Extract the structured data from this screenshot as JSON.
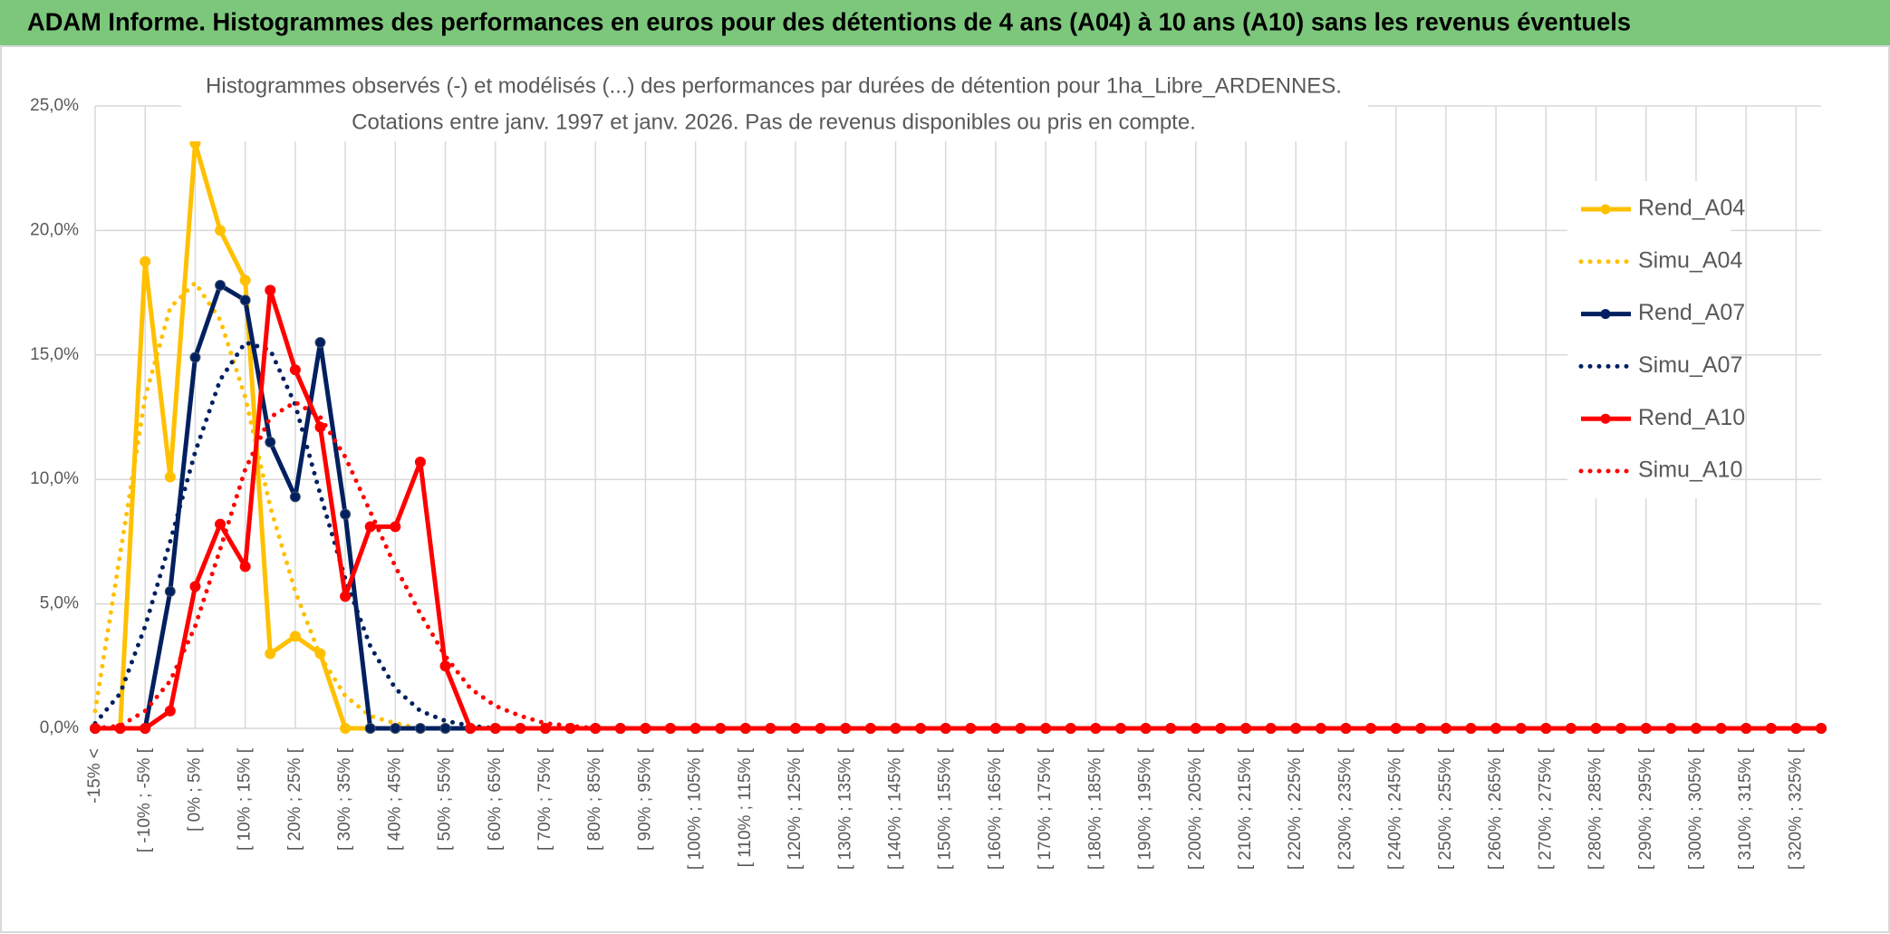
{
  "chart_data": {
    "type": "line",
    "header": "ADAM Informe. Histogrammes des performances en euros pour des détentions de 4 ans (A04) à 10 ans (A10) sans les revenus éventuels",
    "title": "Histogrammes observés (-) et modélisés (...) des performances par durées de détention pour 1ha_Libre_ARDENNES.",
    "subtitle": "Cotations entre janv. 1997 et janv. 2026. Pas de revenus disponibles ou pris en compte.",
    "categories": [
      "-15% <",
      null,
      "[ -10% ; -5% [",
      null,
      "[ 0% ; 5% [",
      null,
      "[ 10% ; 15% [",
      null,
      "[ 20% ; 25% [",
      null,
      "[ 30% ; 35% [",
      null,
      "[ 40% ; 45% [",
      null,
      "[ 50% ; 55% [",
      null,
      "[ 60% ; 65% [",
      null,
      "[ 70% ; 75% [",
      null,
      "[ 80% ; 85% [",
      null,
      "[ 90% ; 95% [",
      null,
      "[ 100% ; 105% [",
      null,
      "[ 110% ; 115% [",
      null,
      "[ 120% ; 125% [",
      null,
      "[ 130% ; 135% [",
      null,
      "[ 140% ; 145% [",
      null,
      "[ 150% ; 155% [",
      null,
      "[ 160% ; 165% [",
      null,
      "[ 170% ; 175% [",
      null,
      "[ 180% ; 185% [",
      null,
      "[ 190% ; 195% [",
      null,
      "[ 200% ; 205% [",
      null,
      "[ 210% ; 215% [",
      null,
      "[ 220% ; 225% [",
      null,
      "[ 230% ; 235% [",
      null,
      "[ 240% ; 245% [",
      null,
      "[ 250% ; 255% [",
      null,
      "[ 260% ; 265% [",
      null,
      "[ 270% ; 275% [",
      null,
      "[ 280% ; 285% [",
      null,
      "[ 290% ; 295% [",
      null,
      "[ 300% ; 305% [",
      null,
      "[ 310% ; 315% [",
      null,
      "[ 320% ; 325% [",
      null
    ],
    "series": [
      {
        "name": "Rend_A04",
        "color": "#FFC000",
        "style": "solid",
        "values": [
          0,
          0,
          18.75,
          10.1,
          23.5,
          20.0,
          18.0,
          3.0,
          3.7,
          3.0,
          0,
          0,
          0,
          0,
          0,
          0,
          0,
          0,
          0,
          0,
          0,
          0,
          0,
          0,
          0,
          0,
          0,
          0,
          0,
          0,
          0,
          0,
          0,
          0,
          0,
          0,
          0,
          0,
          0,
          0,
          0,
          0,
          0,
          0,
          0,
          0,
          0,
          0,
          0,
          0,
          0,
          0,
          0,
          0,
          0,
          0,
          0,
          0,
          0,
          0,
          0,
          0,
          0,
          0,
          0,
          0,
          0,
          0,
          0,
          0
        ]
      },
      {
        "name": "Simu_A04",
        "color": "#FFC000",
        "style": "dotted",
        "values": [
          0.7,
          7,
          13.3,
          16.9,
          17.9,
          16.4,
          13.3,
          8.9,
          5.5,
          2.9,
          1.3,
          0.5,
          0.2,
          0,
          0,
          0,
          0,
          0,
          0,
          0,
          0,
          0,
          0,
          0,
          0,
          0,
          0,
          0,
          0,
          0,
          0,
          0,
          0,
          0,
          0,
          0,
          0,
          0,
          0,
          0,
          0,
          0,
          0,
          0,
          0,
          0,
          0,
          0,
          0,
          0,
          0,
          0,
          0,
          0,
          0,
          0,
          0,
          0,
          0,
          0,
          0,
          0,
          0,
          0,
          0,
          0,
          0,
          0,
          0,
          0
        ]
      },
      {
        "name": "Rend_A07",
        "color": "#002060",
        "style": "solid",
        "values": [
          0,
          0,
          0,
          5.5,
          14.9,
          17.8,
          17.2,
          11.5,
          9.3,
          15.5,
          8.6,
          0,
          0,
          0,
          0,
          0,
          0,
          0,
          0,
          0,
          0,
          0,
          0,
          0,
          0,
          0,
          0,
          0,
          0,
          0,
          0,
          0,
          0,
          0,
          0,
          0,
          0,
          0,
          0,
          0,
          0,
          0,
          0,
          0,
          0,
          0,
          0,
          0,
          0,
          0,
          0,
          0,
          0,
          0,
          0,
          0,
          0,
          0,
          0,
          0,
          0,
          0,
          0,
          0,
          0,
          0,
          0,
          0,
          0,
          0
        ]
      },
      {
        "name": "Simu_A07",
        "color": "#002060",
        "style": "dotted",
        "values": [
          0.2,
          1.4,
          4.1,
          7.5,
          11.1,
          14.0,
          15.5,
          15.2,
          13.0,
          9.4,
          6.0,
          3.3,
          1.6,
          0.7,
          0.3,
          0.1,
          0,
          0,
          0,
          0,
          0,
          0,
          0,
          0,
          0,
          0,
          0,
          0,
          0,
          0,
          0,
          0,
          0,
          0,
          0,
          0,
          0,
          0,
          0,
          0,
          0,
          0,
          0,
          0,
          0,
          0,
          0,
          0,
          0,
          0,
          0,
          0,
          0,
          0,
          0,
          0,
          0,
          0,
          0,
          0,
          0,
          0,
          0,
          0,
          0,
          0,
          0,
          0,
          0,
          0
        ]
      },
      {
        "name": "Rend_A10",
        "color": "#FF0000",
        "style": "solid",
        "values": [
          0,
          0,
          0,
          0.7,
          5.7,
          8.2,
          6.5,
          17.6,
          14.4,
          12.1,
          5.3,
          8.1,
          8.1,
          10.7,
          2.5,
          0,
          0,
          0,
          0,
          0,
          0,
          0,
          0,
          0,
          0,
          0,
          0,
          0,
          0,
          0,
          0,
          0,
          0,
          0,
          0,
          0,
          0,
          0,
          0,
          0,
          0,
          0,
          0,
          0,
          0,
          0,
          0,
          0,
          0,
          0,
          0,
          0,
          0,
          0,
          0,
          0,
          0,
          0,
          0,
          0,
          0,
          0,
          0,
          0,
          0,
          0,
          0,
          0,
          0,
          0
        ]
      },
      {
        "name": "Simu_A10",
        "color": "#FF0000",
        "style": "dotted",
        "values": [
          0,
          0.1,
          0.7,
          1.9,
          4.1,
          7.2,
          10.4,
          12.5,
          13.1,
          12.5,
          10.9,
          8.7,
          6.5,
          4.6,
          2.9,
          1.6,
          0.9,
          0.5,
          0.2,
          0.1,
          0,
          0,
          0,
          0,
          0,
          0,
          0,
          0,
          0,
          0,
          0,
          0,
          0,
          0,
          0,
          0,
          0,
          0,
          0,
          0,
          0,
          0,
          0,
          0,
          0,
          0,
          0,
          0,
          0,
          0,
          0,
          0,
          0,
          0,
          0,
          0,
          0,
          0,
          0,
          0,
          0,
          0,
          0,
          0,
          0,
          0,
          0,
          0,
          0,
          0
        ]
      }
    ],
    "ylim": [
      0,
      25
    ],
    "yticks": [
      {
        "value": 0,
        "label": "0,0%"
      },
      {
        "value": 5,
        "label": "5,0%"
      },
      {
        "value": 10,
        "label": "10,0%"
      },
      {
        "value": 15,
        "label": "15,0%"
      },
      {
        "value": 20,
        "label": "20,0%"
      },
      {
        "value": 25,
        "label": "25,0%"
      }
    ],
    "grid": true,
    "legend": "right"
  }
}
